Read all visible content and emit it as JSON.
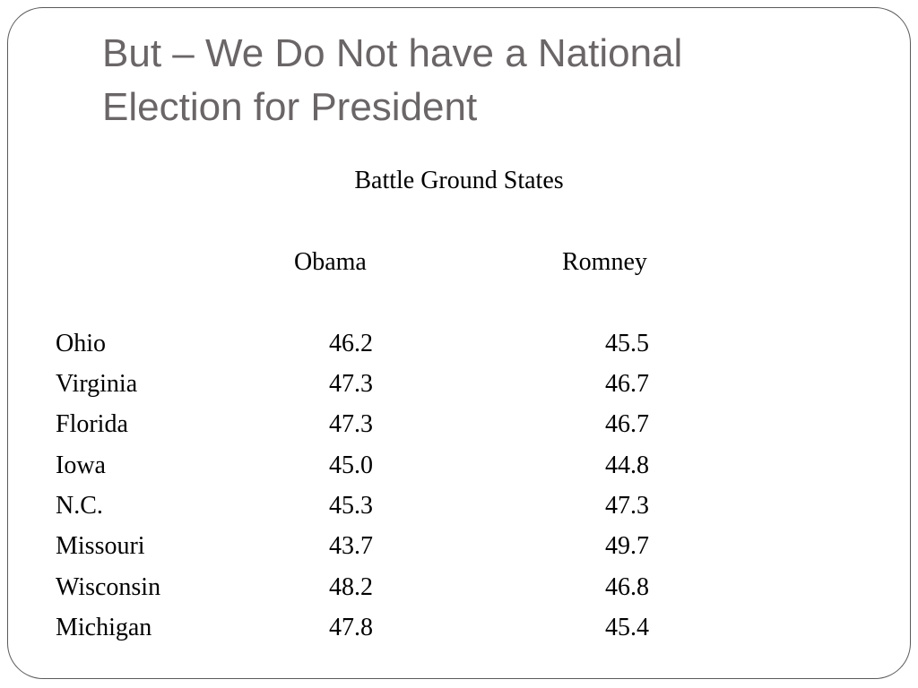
{
  "slide": {
    "title_line1": "But – We Do Not have a National",
    "title_line2": "Election for President",
    "subtitle": "Battle Ground States",
    "columns": [
      "Obama",
      "Romney"
    ],
    "rows": [
      {
        "state": "Ohio",
        "obama": "46.2",
        "romney": "45.5"
      },
      {
        "state": "Virginia",
        "obama": "47.3",
        "romney": "46.7"
      },
      {
        "state": "Florida",
        "obama": "47.3",
        "romney": "46.7"
      },
      {
        "state": "Iowa",
        "obama": "45.0",
        "romney": "44.8"
      },
      {
        "state": "N.C.",
        "obama": "45.3",
        "romney": "47.3"
      },
      {
        "state": "Missouri",
        "obama": "43.7",
        "romney": "49.7"
      },
      {
        "state": "Wisconsin",
        "obama": "48.2",
        "romney": "46.8"
      },
      {
        "state": "Michigan",
        "obama": "47.8",
        "romney": "45.4"
      }
    ]
  }
}
